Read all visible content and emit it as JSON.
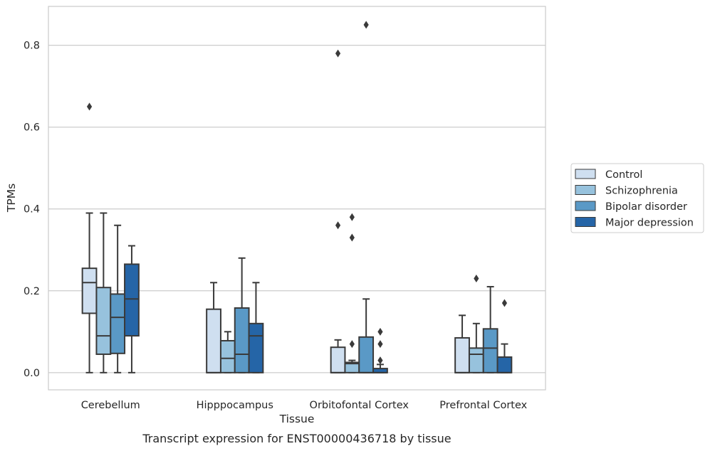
{
  "chart_data": {
    "type": "box",
    "xlabel": "Tissue",
    "ylabel": "TPMs",
    "caption": "Transcript expression for ENST00000436718 by tissue",
    "ylim": [
      -0.042,
      0.895
    ],
    "yticks": [
      0.0,
      0.2,
      0.4,
      0.6,
      0.8
    ],
    "ytick_labels": [
      "0.0",
      "0.2",
      "0.4",
      "0.6",
      "0.8"
    ],
    "grid": "horizontal",
    "legend_position": "right",
    "categories": [
      "Cerebellum",
      "Hipppocampus",
      "Orbitofontal Cortex",
      "Prefrontal Cortex"
    ],
    "series": [
      {
        "name": "Control",
        "color": "#cfdff0",
        "boxes": [
          {
            "whisker_low": 0.0,
            "q1": 0.145,
            "median": 0.22,
            "q3": 0.255,
            "whisker_high": 0.39,
            "outliers": [
              0.65
            ]
          },
          {
            "whisker_low": 0.0,
            "q1": 0.0,
            "median": 0.0,
            "q3": 0.155,
            "whisker_high": 0.22,
            "outliers": []
          },
          {
            "whisker_low": 0.0,
            "q1": 0.0,
            "median": 0.0,
            "q3": 0.062,
            "whisker_high": 0.08,
            "outliers": [
              0.36,
              0.78
            ]
          },
          {
            "whisker_low": 0.0,
            "q1": 0.0,
            "median": 0.0,
            "q3": 0.085,
            "whisker_high": 0.14,
            "outliers": []
          }
        ]
      },
      {
        "name": "Schizophrenia",
        "color": "#97c2dd",
        "boxes": [
          {
            "whisker_low": 0.0,
            "q1": 0.045,
            "median": 0.09,
            "q3": 0.208,
            "whisker_high": 0.39,
            "outliers": []
          },
          {
            "whisker_low": 0.0,
            "q1": 0.0,
            "median": 0.035,
            "q3": 0.078,
            "whisker_high": 0.1,
            "outliers": []
          },
          {
            "whisker_low": 0.0,
            "q1": 0.0,
            "median": 0.022,
            "q3": 0.025,
            "whisker_high": 0.03,
            "outliers": [
              0.38,
              0.33,
              0.07
            ]
          },
          {
            "whisker_low": 0.0,
            "q1": 0.0,
            "median": 0.045,
            "q3": 0.06,
            "whisker_high": 0.12,
            "outliers": [
              0.23
            ]
          }
        ]
      },
      {
        "name": "Bipolar disorder",
        "color": "#5a99c6",
        "boxes": [
          {
            "whisker_low": 0.0,
            "q1": 0.047,
            "median": 0.135,
            "q3": 0.192,
            "whisker_high": 0.36,
            "outliers": []
          },
          {
            "whisker_low": 0.0,
            "q1": 0.0,
            "median": 0.045,
            "q3": 0.158,
            "whisker_high": 0.28,
            "outliers": []
          },
          {
            "whisker_low": 0.0,
            "q1": 0.0,
            "median": 0.0,
            "q3": 0.087,
            "whisker_high": 0.18,
            "outliers": [
              0.85
            ]
          },
          {
            "whisker_low": 0.0,
            "q1": 0.0,
            "median": 0.06,
            "q3": 0.107,
            "whisker_high": 0.21,
            "outliers": []
          }
        ]
      },
      {
        "name": "Major depression",
        "color": "#2565a7",
        "boxes": [
          {
            "whisker_low": 0.0,
            "q1": 0.09,
            "median": 0.18,
            "q3": 0.265,
            "whisker_high": 0.31,
            "outliers": []
          },
          {
            "whisker_low": 0.0,
            "q1": 0.0,
            "median": 0.09,
            "q3": 0.12,
            "whisker_high": 0.22,
            "outliers": []
          },
          {
            "whisker_low": 0.0,
            "q1": 0.0,
            "median": 0.0,
            "q3": 0.01,
            "whisker_high": 0.02,
            "outliers": [
              0.1,
              0.07,
              0.03
            ]
          },
          {
            "whisker_low": 0.0,
            "q1": 0.0,
            "median": 0.0,
            "q3": 0.038,
            "whisker_high": 0.07,
            "outliers": [
              0.17
            ]
          }
        ]
      }
    ]
  }
}
